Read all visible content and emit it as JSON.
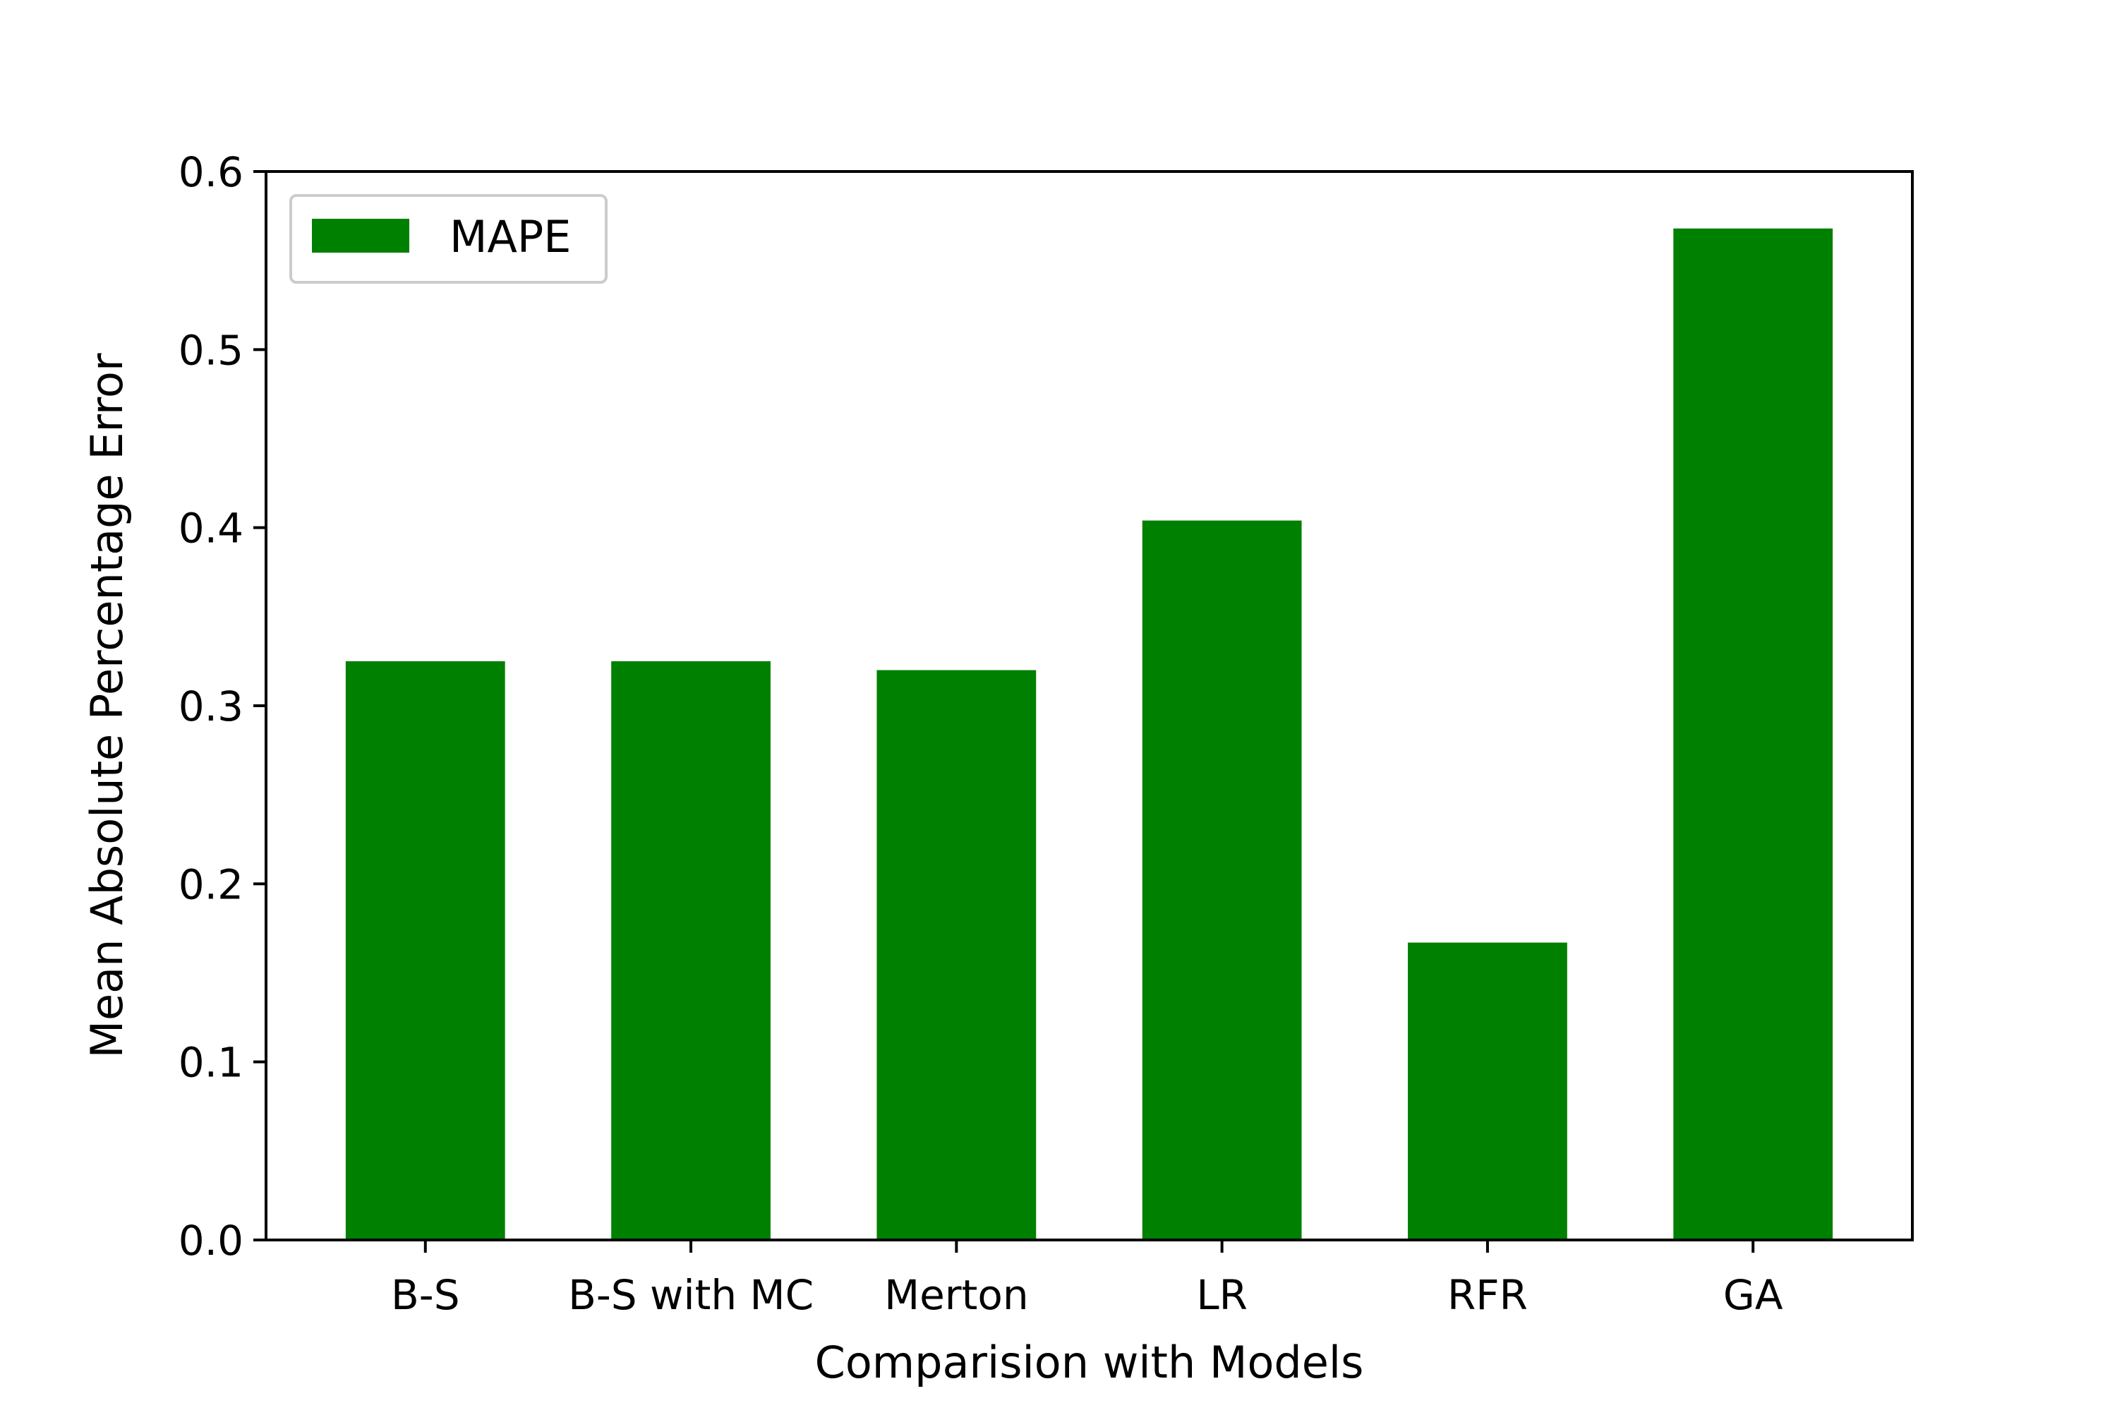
{
  "chart_data": {
    "type": "bar",
    "title": "",
    "xlabel": "Comparision with Models",
    "ylabel": "Mean Absolute Percentage Error",
    "categories": [
      "B-S",
      "B-S with MC",
      "Merton",
      "LR",
      "RFR",
      "GA"
    ],
    "series": [
      {
        "name": "MAPE",
        "color": "#008000",
        "values": [
          0.325,
          0.325,
          0.32,
          0.404,
          0.167,
          0.568
        ]
      }
    ],
    "ylim": [
      0.0,
      0.6
    ],
    "yticks": [
      0.0,
      0.1,
      0.2,
      0.3,
      0.4,
      0.5,
      0.6
    ],
    "ytick_labels": [
      "0.0",
      "0.1",
      "0.2",
      "0.3",
      "0.4",
      "0.5",
      "0.6"
    ],
    "grid": false,
    "legend_position": "top-left"
  }
}
